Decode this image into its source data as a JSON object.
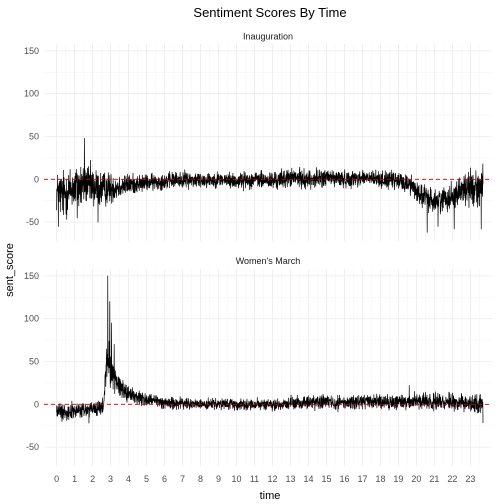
{
  "chart_data": {
    "type": "line",
    "title": "Sentiment Scores By Time",
    "xlabel": "time",
    "ylabel": "sent_score",
    "xlim": [
      -0.7,
      24.2
    ],
    "ylim": [
      -72,
      158
    ],
    "x_ticks": [
      0,
      1,
      2,
      3,
      4,
      5,
      6,
      7,
      8,
      9,
      10,
      11,
      12,
      13,
      14,
      15,
      16,
      17,
      18,
      19,
      20,
      21,
      22,
      23
    ],
    "y_ticks": [
      -50,
      0,
      50,
      100,
      150
    ],
    "reference_line": {
      "y": 0,
      "color": "#cc0000",
      "style": "dashed"
    },
    "grid": true,
    "legend": "none",
    "line_color": "#000000",
    "panels": [
      {
        "strip_label": "Inauguration",
        "profile": [
          [
            0.0,
            -15,
            20
          ],
          [
            0.4,
            -18,
            25
          ],
          [
            0.9,
            -10,
            22
          ],
          [
            1.4,
            -8,
            24
          ],
          [
            1.6,
            -5,
            18
          ],
          [
            2.0,
            -10,
            22
          ],
          [
            2.5,
            -12,
            18
          ],
          [
            3.0,
            -10,
            15
          ],
          [
            3.5,
            -8,
            12
          ],
          [
            4.0,
            -6,
            10
          ],
          [
            5.0,
            -4,
            8
          ],
          [
            6.0,
            -2,
            8
          ],
          [
            7.0,
            0,
            8
          ],
          [
            8.0,
            -1,
            8
          ],
          [
            9.0,
            0,
            7
          ],
          [
            10.0,
            -2,
            8
          ],
          [
            11.0,
            0,
            8
          ],
          [
            12.0,
            -2,
            9
          ],
          [
            13.0,
            2,
            9
          ],
          [
            14.0,
            0,
            9
          ],
          [
            15.0,
            2,
            9
          ],
          [
            16.0,
            0,
            8
          ],
          [
            17.0,
            2,
            8
          ],
          [
            18.0,
            0,
            8
          ],
          [
            19.0,
            -2,
            9
          ],
          [
            19.7,
            -6,
            10
          ],
          [
            20.3,
            -20,
            12
          ],
          [
            21.0,
            -25,
            12
          ],
          [
            21.5,
            -22,
            12
          ],
          [
            22.0,
            -20,
            14
          ],
          [
            22.5,
            -12,
            15
          ],
          [
            23.0,
            -10,
            18
          ],
          [
            23.7,
            -8,
            20
          ]
        ],
        "spikes": [
          {
            "x": 1.55,
            "y": 48
          },
          {
            "x": 0.1,
            "y": -55
          },
          {
            "x": 1.15,
            "y": -45
          },
          {
            "x": 2.3,
            "y": -50
          },
          {
            "x": 20.6,
            "y": -62
          },
          {
            "x": 21.2,
            "y": -55
          },
          {
            "x": 22.1,
            "y": -58
          },
          {
            "x": 23.6,
            "y": -58
          }
        ]
      },
      {
        "strip_label": "Women's March",
        "profile": [
          [
            0.0,
            -8,
            8
          ],
          [
            1.0,
            -8,
            8
          ],
          [
            2.0,
            -6,
            8
          ],
          [
            2.6,
            -4,
            8
          ],
          [
            2.8,
            55,
            20
          ],
          [
            3.0,
            42,
            18
          ],
          [
            3.3,
            28,
            12
          ],
          [
            3.7,
            18,
            10
          ],
          [
            4.2,
            10,
            8
          ],
          [
            5.0,
            5,
            7
          ],
          [
            6.0,
            2,
            6
          ],
          [
            7.0,
            1,
            6
          ],
          [
            8.0,
            0,
            5
          ],
          [
            9.0,
            0,
            5
          ],
          [
            10.0,
            0,
            5
          ],
          [
            11.0,
            0,
            5
          ],
          [
            12.0,
            -1,
            5
          ],
          [
            13.0,
            1,
            6
          ],
          [
            14.0,
            2,
            7
          ],
          [
            15.0,
            3,
            7
          ],
          [
            16.0,
            2,
            7
          ],
          [
            17.0,
            3,
            7
          ],
          [
            18.0,
            2,
            7
          ],
          [
            19.0,
            3,
            7
          ],
          [
            20.0,
            3,
            8
          ],
          [
            21.0,
            4,
            8
          ],
          [
            22.0,
            3,
            8
          ],
          [
            23.0,
            2,
            9
          ],
          [
            23.7,
            0,
            9
          ]
        ],
        "spikes": [
          {
            "x": 2.85,
            "y": 150
          },
          {
            "x": 2.95,
            "y": 120
          },
          {
            "x": 3.05,
            "y": 95
          },
          {
            "x": 3.2,
            "y": 70
          },
          {
            "x": 0.3,
            "y": -20
          },
          {
            "x": 1.8,
            "y": -22
          },
          {
            "x": 19.6,
            "y": 22
          },
          {
            "x": 23.7,
            "y": -22
          }
        ]
      }
    ]
  }
}
